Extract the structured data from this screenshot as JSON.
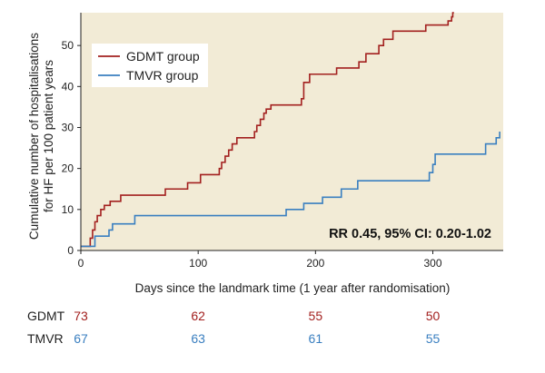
{
  "chart_data": {
    "type": "line",
    "step": true,
    "title": "",
    "xlabel": "Days since the landmark time (1 year after randomisation)",
    "ylabel": [
      "Cumulative number of hospitalisations",
      "for HF per 100 patient years"
    ],
    "xlim": [
      0,
      360
    ],
    "ylim": [
      0,
      58
    ],
    "xticks": [
      0,
      100,
      200,
      300
    ],
    "yticks": [
      0,
      10,
      20,
      30,
      40,
      50
    ],
    "grid": false,
    "background": "#f2ebd6",
    "legend_position": "top-left",
    "annotation": "RR 0.45, 95% CI: 0.20-1.02",
    "series": [
      {
        "name": "GDMT group",
        "color": "#a3201f",
        "x": [
          0,
          8,
          10,
          12,
          14,
          17,
          20,
          25,
          34,
          42,
          72,
          91,
          102,
          118,
          120,
          123,
          126,
          129,
          133,
          148,
          150,
          153,
          156,
          158,
          162,
          170,
          188,
          190,
          195,
          217,
          218,
          232,
          237,
          243,
          254,
          258,
          266,
          280,
          294,
          312,
          313,
          316,
          317,
          318
        ],
        "y": [
          1,
          3,
          5,
          7,
          8.5,
          10,
          11,
          12,
          13.5,
          13.5,
          15,
          16.5,
          18.5,
          20,
          21.5,
          23,
          24.5,
          26,
          27.5,
          29,
          30.5,
          32,
          33.5,
          34.5,
          35.5,
          35.5,
          37,
          41,
          43,
          43,
          44.5,
          44.5,
          46,
          48,
          50,
          51.5,
          53.5,
          53.5,
          55,
          55,
          56,
          57,
          58,
          58
        ]
      },
      {
        "name": "TMVR group",
        "color": "#3a7fc0",
        "x": [
          0,
          12,
          24,
          27,
          46,
          90,
          170,
          175,
          190,
          206,
          222,
          236,
          250,
          280,
          297,
          300,
          302,
          336,
          345,
          354,
          357
        ],
        "y": [
          1,
          3.5,
          5,
          6.5,
          8.5,
          8.5,
          8.5,
          10,
          11.5,
          13,
          15,
          17,
          17,
          17,
          19,
          21,
          23.5,
          23.5,
          26,
          27.5,
          29
        ]
      }
    ]
  },
  "risk_table": {
    "rows": [
      {
        "label": "GDMT",
        "color": "#a3201f",
        "values": [
          "73",
          "62",
          "55",
          "50"
        ]
      },
      {
        "label": "TMVR",
        "color": "#3a7fc0",
        "values": [
          "67",
          "63",
          "61",
          "55"
        ]
      }
    ]
  }
}
